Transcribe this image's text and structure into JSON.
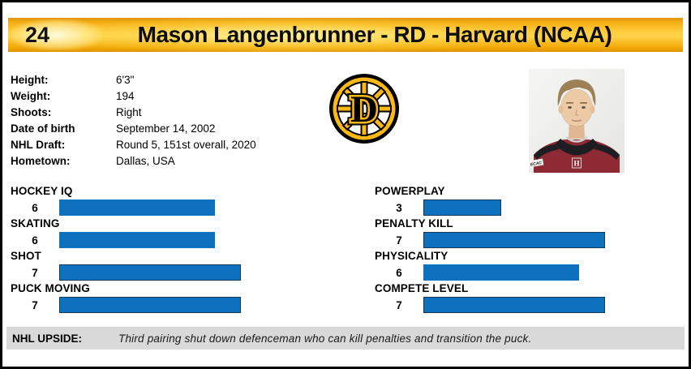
{
  "colors": {
    "header_gold": "#ffc000",
    "bar_blue": "#0d71be",
    "bar_border_navy": "#17375d",
    "upside_gray": "#d9d9d9",
    "logo_gold": "#fdb913",
    "logo_black": "#000000",
    "jersey_crimson": "#8d2a34"
  },
  "header": {
    "number": "24",
    "title": "Mason Langenbrunner - RD - Harvard (NCAA)"
  },
  "info": {
    "rows": [
      {
        "label": "Height:",
        "value": "6'3\""
      },
      {
        "label": "Weight:",
        "value": "194"
      },
      {
        "label": "Shoots:",
        "value": "Right"
      },
      {
        "label": "Date of birth",
        "value": "September 14, 2002"
      },
      {
        "label": "NHL Draft:",
        "value": "Round 5, 151st overall, 2020"
      },
      {
        "label": "Hometown:",
        "value": "Dallas, USA"
      }
    ]
  },
  "logo": {
    "letter": "D"
  },
  "photo": {
    "jersey_letter": "H",
    "shoulder_patch": "ECAC"
  },
  "ratings": {
    "scale_max": 10,
    "left": [
      {
        "label": "HOCKEY IQ",
        "value": 6,
        "bordered": false
      },
      {
        "label": "SKATING",
        "value": 6,
        "bordered": false
      },
      {
        "label": "SHOT",
        "value": 7,
        "bordered": true
      },
      {
        "label": "PUCK MOVING",
        "value": 7,
        "bordered": true
      }
    ],
    "right": [
      {
        "label": "POWERPLAY",
        "value": 3,
        "bordered": true
      },
      {
        "label": "PENALTY KILL",
        "value": 7,
        "bordered": true
      },
      {
        "label": "PHYSICALITY",
        "value": 6,
        "bordered": false
      },
      {
        "label": "COMPETE LEVEL",
        "value": 7,
        "bordered": true
      }
    ]
  },
  "upside": {
    "label": "NHL UPSIDE:",
    "text": "Third pairing shut down defenceman who can kill penalties and transition the puck."
  },
  "chart_data": {
    "type": "bar",
    "orientation": "horizontal",
    "title": "Player attribute ratings",
    "categories": [
      "Hockey IQ",
      "Skating",
      "Shot",
      "Puck Moving",
      "Powerplay",
      "Penalty Kill",
      "Physicality",
      "Compete Level"
    ],
    "values": [
      6,
      6,
      7,
      7,
      3,
      7,
      6,
      7
    ],
    "xlim": [
      0,
      10
    ],
    "bar_color": "#0d71be",
    "legend": false,
    "grid": false
  }
}
